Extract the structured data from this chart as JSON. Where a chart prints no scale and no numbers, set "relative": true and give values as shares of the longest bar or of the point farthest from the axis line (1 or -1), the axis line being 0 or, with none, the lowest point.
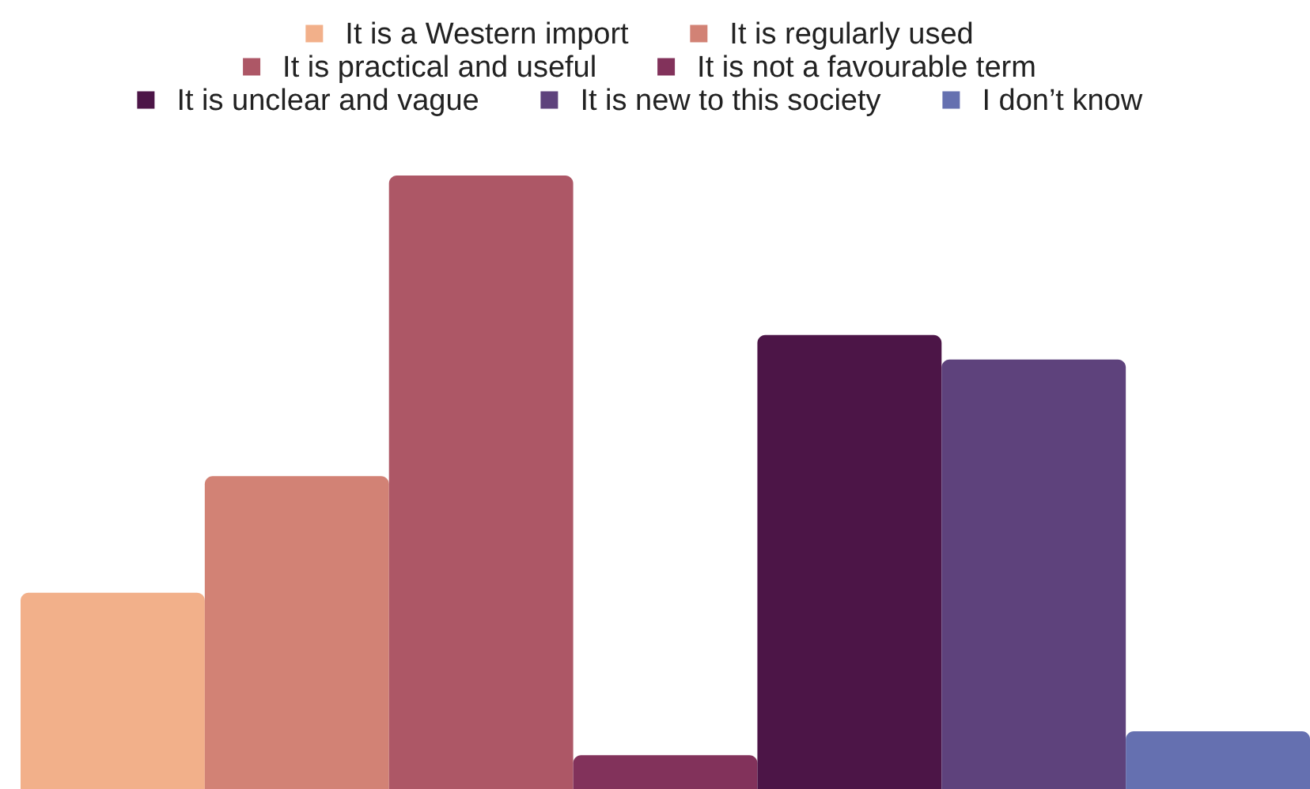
{
  "chart_data": {
    "type": "bar",
    "categories": [
      null,
      null,
      null,
      null,
      null,
      null,
      null
    ],
    "series": [
      {
        "name": "It is a Western import",
        "color": "#f2b08a",
        "values": [
          0.32,
          null,
          null,
          null,
          null,
          null,
          null
        ]
      },
      {
        "name": "It is regularly used",
        "color": "#d28275",
        "values": [
          null,
          0.51,
          null,
          null,
          null,
          null,
          null
        ]
      },
      {
        "name": "It is practical and useful",
        "color": "#ad5766",
        "values": [
          null,
          null,
          1,
          null,
          null,
          null,
          null
        ]
      },
      {
        "name": "It is not a favourable term",
        "color": "#82325b",
        "values": [
          null,
          null,
          null,
          0.055,
          null,
          null,
          null
        ]
      },
      {
        "name": "It is unclear and vague",
        "color": "#4c1547",
        "values": [
          null,
          null,
          null,
          null,
          0.74,
          null,
          null
        ]
      },
      {
        "name": "It is new to this society",
        "color": "#5e427c",
        "values": [
          null,
          null,
          null,
          null,
          null,
          0.7,
          null
        ]
      },
      {
        "name": "I don’t know",
        "color": "#6570b0",
        "values": [
          null,
          null,
          null,
          null,
          null,
          null,
          0.094
        ]
      }
    ],
    "stacked": true,
    "relative": true,
    "legend": "top"
  }
}
